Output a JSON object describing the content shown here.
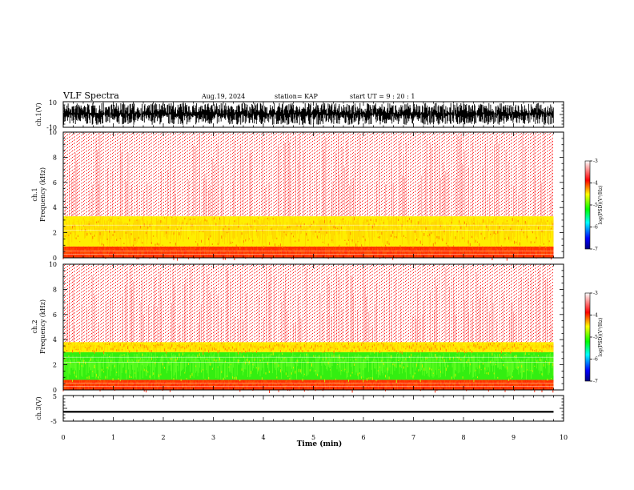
{
  "header": {
    "title": "VLF Spectra",
    "date": "Aug.19, 2024",
    "station": "station= KAP",
    "start_ut": "start  UT =   9 : 20 : 1"
  },
  "chart_data": [
    {
      "type": "line",
      "panel": "ch1-waveform",
      "ylabel": "ch.1(V)",
      "ylim": [
        -10,
        10
      ],
      "ytick_labels": [
        "10",
        "-10"
      ],
      "x_range_min": [
        0,
        9.8
      ],
      "approx_envelope_V": [
        -8,
        9
      ]
    },
    {
      "type": "heatmap",
      "panel": "ch1-spectrogram",
      "ylabel": "Frequency (kHz)",
      "channel_label": "ch.1",
      "ylim": [
        0,
        10
      ],
      "ytick_labels": [
        "0",
        "2",
        "4",
        "6",
        "8",
        "10"
      ],
      "x_range_min": [
        0,
        9.8
      ],
      "bands_kHz": [
        {
          "from": 0,
          "to": 0.9,
          "color": "red-orange"
        },
        {
          "from": 0.9,
          "to": 3.3,
          "color": "yellow"
        },
        {
          "from": 3.3,
          "to": 10,
          "color": "red-sparse"
        }
      ],
      "colorbar": {
        "label": "log(PSD)(V²/Hz)",
        "range": [
          -7,
          -3
        ],
        "tick_labels": [
          "-3",
          "-4",
          "-5",
          "-6",
          "-7"
        ]
      }
    },
    {
      "type": "heatmap",
      "panel": "ch2-spectrogram",
      "ylabel": "Frequency (kHz)",
      "channel_label": "ch.2",
      "ylim": [
        0,
        10
      ],
      "ytick_labels": [
        "0",
        "2",
        "4",
        "6",
        "8",
        "10"
      ],
      "x_range_min": [
        0,
        9.8
      ],
      "bands_kHz": [
        {
          "from": 0,
          "to": 0.8,
          "color": "red-orange"
        },
        {
          "from": 0.8,
          "to": 3.0,
          "color": "green"
        },
        {
          "from": 3.0,
          "to": 3.8,
          "color": "yellow"
        },
        {
          "from": 3.8,
          "to": 10,
          "color": "red-sparse"
        }
      ],
      "colorbar": {
        "label": "log(PSD)(V²/Hz)",
        "range": [
          -7,
          -3
        ],
        "tick_labels": [
          "-3",
          "-4",
          "-5",
          "-6",
          "-7"
        ]
      }
    },
    {
      "type": "line",
      "panel": "ch3-waveform",
      "ylabel": "ch.3(V)",
      "ylim": [
        -5,
        5
      ],
      "ytick_labels": [
        "5",
        "-5"
      ],
      "x_range_min": [
        0,
        9.8
      ],
      "approx_envelope_V": [
        -1.7,
        -1.0
      ]
    }
  ],
  "x_axis": {
    "label": "Time  (min)",
    "range": [
      0,
      10
    ],
    "tick_labels": [
      "0",
      "1",
      "2",
      "3",
      "4",
      "5",
      "6",
      "7",
      "8",
      "9",
      "10"
    ]
  },
  "colors": {
    "waveform": "#000000",
    "spec_low": "#ff2a1a",
    "spec_yellow": "#ffe600",
    "spec_green": "#33e61a",
    "spec_red": "#ff0000"
  }
}
